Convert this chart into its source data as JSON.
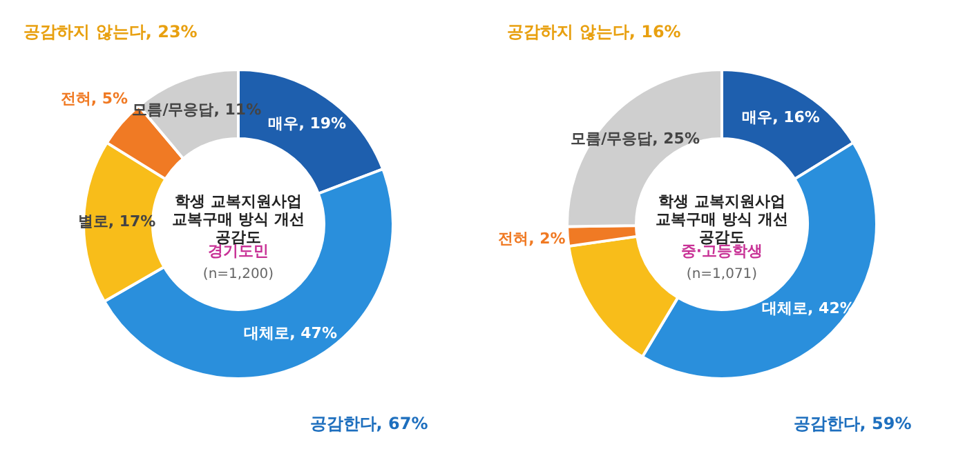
{
  "chart_data": [
    {
      "type": "donut",
      "title": "학생 교복지원사업\n교복구매 방식 개선\n공감도",
      "subtitle": "경기도민",
      "categories": [
        "매우",
        "대체로",
        "별로",
        "전혀",
        "모름/무응답"
      ],
      "values": [
        19,
        47,
        17,
        5,
        11
      ],
      "value_labels": [
        "19%",
        "47%",
        "17%",
        "5%",
        "11%"
      ],
      "colors": [
        "#1e5fae",
        "#2a8fdc",
        "#f8bd1a",
        "#f07a24",
        "#cfcfcf"
      ],
      "annotations": [
        "(n=1,200)",
        "공감한다, 67%",
        "공감하지 않는다, 23%"
      ]
    },
    {
      "type": "donut",
      "title": "학생 교복지원사업\n교복구매 방식 개선\n공감도",
      "subtitle": "중·고등학생",
      "categories": [
        "매우",
        "대체로",
        null,
        "전혀",
        "모름/무응답"
      ],
      "values": [
        16,
        42,
        14,
        2,
        25
      ],
      "value_labels": [
        "16%",
        "42%",
        null,
        "2%",
        "25%"
      ],
      "colors": [
        "#1e5fae",
        "#2a8fdc",
        "#f8bd1a",
        "#f07a24",
        "#cfcfcf"
      ],
      "annotations": [
        "(n=1,071)",
        "공감한다, 59%",
        "공감하지 않는다, 16%"
      ]
    }
  ]
}
